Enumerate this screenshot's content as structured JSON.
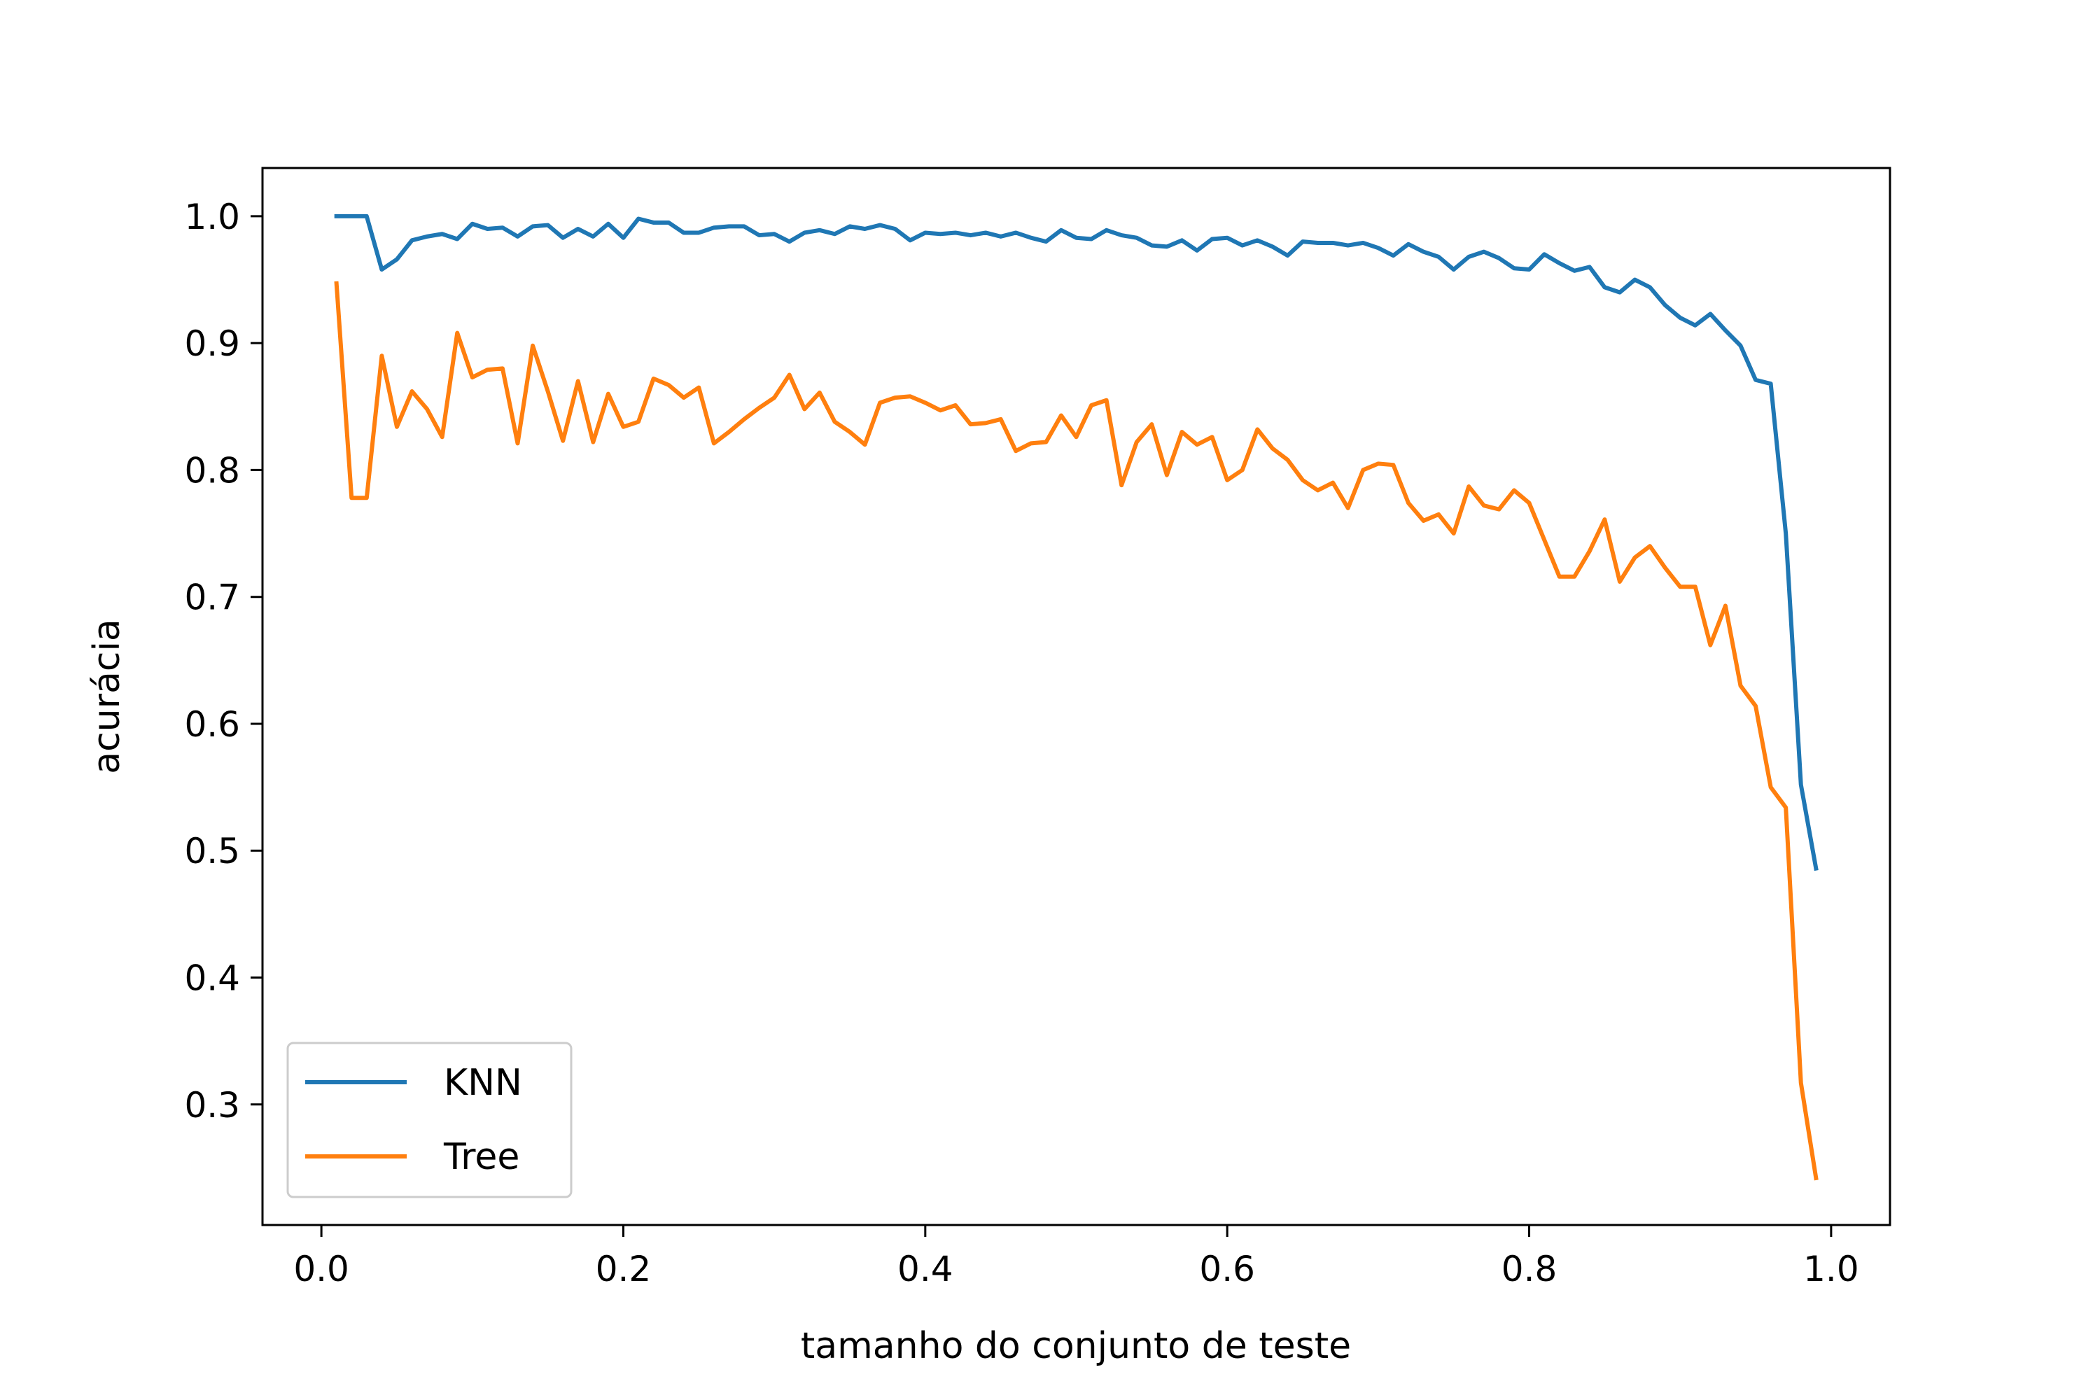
{
  "chart_data": {
    "type": "line",
    "xlabel": "tamanho do conjunto de teste",
    "ylabel": "acurácia",
    "xlim": [
      -0.039,
      1.039
    ],
    "ylim": [
      0.205,
      1.038
    ],
    "xticks": [
      "0.0",
      "0.2",
      "0.4",
      "0.6",
      "0.8",
      "1.0"
    ],
    "yticks": [
      "0.3",
      "0.4",
      "0.5",
      "0.6",
      "0.7",
      "0.8",
      "0.9",
      "1.0"
    ],
    "grid": false,
    "legend_position": "lower left",
    "x": [
      0.01,
      0.02,
      0.03,
      0.04,
      0.05,
      0.06,
      0.07,
      0.08,
      0.09,
      0.1,
      0.11,
      0.12,
      0.13,
      0.14,
      0.15,
      0.16,
      0.17,
      0.18,
      0.19,
      0.2,
      0.21,
      0.22,
      0.23,
      0.24,
      0.25,
      0.26,
      0.27,
      0.28,
      0.29,
      0.3,
      0.31,
      0.32,
      0.33,
      0.34,
      0.35,
      0.36,
      0.37,
      0.38,
      0.39,
      0.4,
      0.41,
      0.42,
      0.43,
      0.44,
      0.45,
      0.46,
      0.47,
      0.48,
      0.49,
      0.5,
      0.51,
      0.52,
      0.53,
      0.54,
      0.55,
      0.56,
      0.57,
      0.58,
      0.59,
      0.6,
      0.61,
      0.62,
      0.63,
      0.64,
      0.65,
      0.66,
      0.67,
      0.68,
      0.69,
      0.7,
      0.71,
      0.72,
      0.73,
      0.74,
      0.75,
      0.76,
      0.77,
      0.78,
      0.79,
      0.8,
      0.81,
      0.82,
      0.83,
      0.84,
      0.85,
      0.86,
      0.87,
      0.88,
      0.89,
      0.9,
      0.91,
      0.92,
      0.93,
      0.94,
      0.95,
      0.96,
      0.97,
      0.98,
      0.99
    ],
    "series": [
      {
        "name": "KNN",
        "color": "#1f77b4",
        "values": [
          1.0,
          1.0,
          1.0,
          0.958,
          0.966,
          0.981,
          0.984,
          0.986,
          0.982,
          0.994,
          0.99,
          0.991,
          0.984,
          0.992,
          0.993,
          0.983,
          0.99,
          0.984,
          0.994,
          0.983,
          0.998,
          0.995,
          0.995,
          0.987,
          0.987,
          0.991,
          0.992,
          0.992,
          0.985,
          0.986,
          0.98,
          0.987,
          0.989,
          0.986,
          0.992,
          0.99,
          0.993,
          0.99,
          0.981,
          0.987,
          0.986,
          0.987,
          0.985,
          0.987,
          0.984,
          0.987,
          0.983,
          0.98,
          0.989,
          0.983,
          0.982,
          0.989,
          0.985,
          0.983,
          0.977,
          0.976,
          0.981,
          0.973,
          0.982,
          0.983,
          0.977,
          0.981,
          0.976,
          0.969,
          0.98,
          0.979,
          0.979,
          0.977,
          0.979,
          0.975,
          0.969,
          0.978,
          0.972,
          0.968,
          0.958,
          0.968,
          0.972,
          0.967,
          0.959,
          0.958,
          0.97,
          0.963,
          0.957,
          0.96,
          0.944,
          0.94,
          0.95,
          0.944,
          0.93,
          0.92,
          0.914,
          0.923,
          0.91,
          0.898,
          0.871,
          0.868,
          0.75,
          0.552,
          0.486
        ]
      },
      {
        "name": "Tree",
        "color": "#ff7f0e",
        "values": [
          0.947,
          0.778,
          0.778,
          0.89,
          0.834,
          0.862,
          0.848,
          0.826,
          0.908,
          0.873,
          0.879,
          0.88,
          0.821,
          0.898,
          0.862,
          0.823,
          0.87,
          0.822,
          0.86,
          0.834,
          0.838,
          0.872,
          0.867,
          0.857,
          0.865,
          0.821,
          0.83,
          0.84,
          0.849,
          0.857,
          0.875,
          0.848,
          0.861,
          0.838,
          0.83,
          0.82,
          0.853,
          0.857,
          0.858,
          0.853,
          0.847,
          0.851,
          0.836,
          0.837,
          0.84,
          0.815,
          0.821,
          0.822,
          0.843,
          0.826,
          0.851,
          0.855,
          0.788,
          0.822,
          0.836,
          0.796,
          0.83,
          0.82,
          0.826,
          0.792,
          0.8,
          0.832,
          0.817,
          0.808,
          0.792,
          0.784,
          0.79,
          0.77,
          0.8,
          0.805,
          0.804,
          0.774,
          0.76,
          0.765,
          0.75,
          0.787,
          0.772,
          0.769,
          0.784,
          0.774,
          0.745,
          0.716,
          0.716,
          0.736,
          0.761,
          0.712,
          0.731,
          0.74,
          0.723,
          0.708,
          0.708,
          0.662,
          0.693,
          0.63,
          0.614,
          0.55,
          0.534,
          0.317,
          0.242
        ]
      }
    ]
  }
}
